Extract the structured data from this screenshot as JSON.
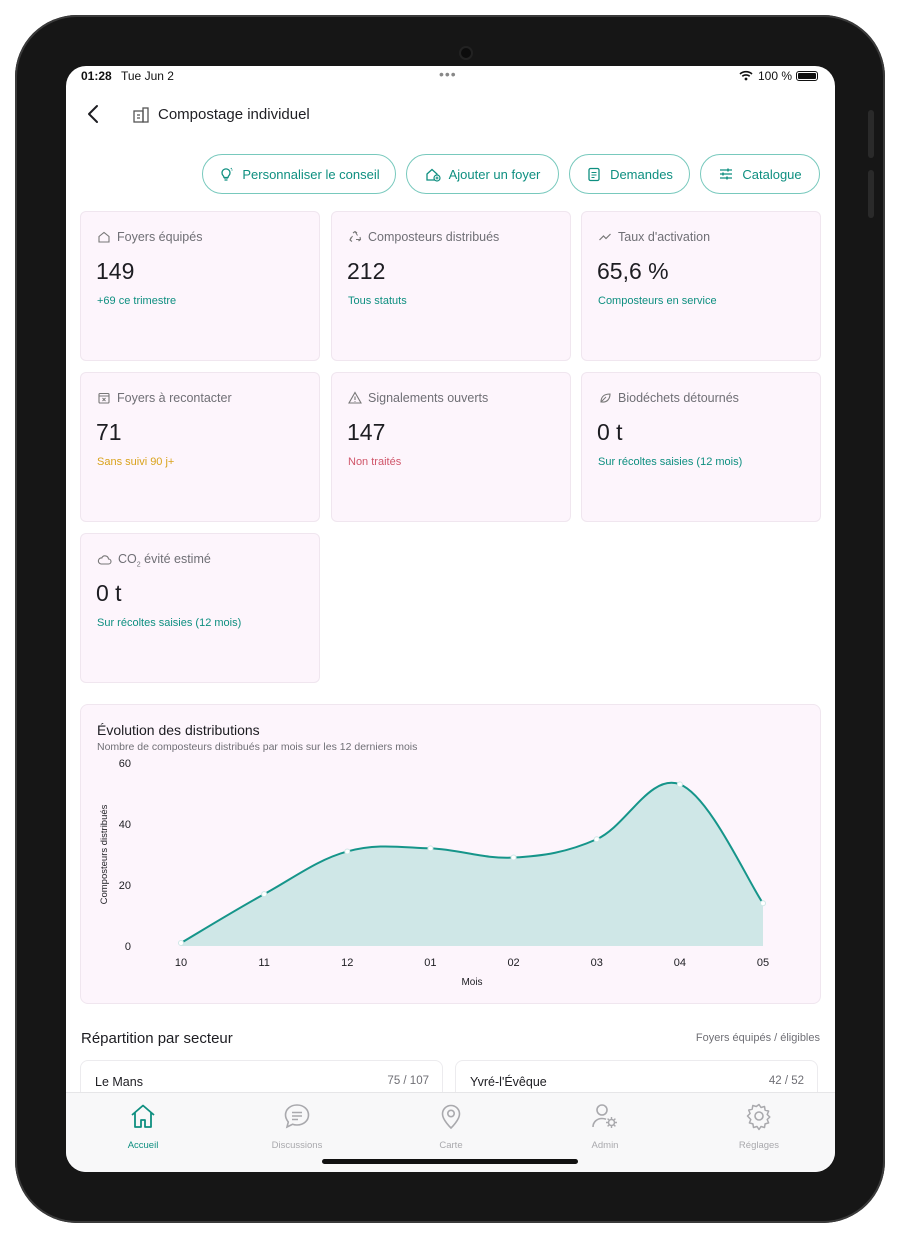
{
  "status_bar": {
    "time": "01:28",
    "date": "Tue Jun 2",
    "battery": "100 %"
  },
  "header": {
    "title": "Compostage individuel"
  },
  "actions": [
    {
      "label": "Personnaliser le conseil",
      "icon": "lightbulb-icon"
    },
    {
      "label": "Ajouter un foyer",
      "icon": "house-add-icon"
    },
    {
      "label": "Demandes",
      "icon": "clipboard-icon"
    },
    {
      "label": "Catalogue",
      "icon": "sliders-icon"
    }
  ],
  "colors": {
    "accent": "#0e8f80",
    "warning": "#d9a31c",
    "danger": "#d0566a",
    "card_bg": "#fdf5fc"
  },
  "stats": [
    {
      "label": "Foyers équipés",
      "value": "149",
      "sub": "+69 ce trimestre",
      "sub_color": "#0e8f80",
      "icon": "home-icon"
    },
    {
      "label": "Composteurs distribués",
      "value": "212",
      "sub": "Tous statuts",
      "sub_color": "#0e8f80",
      "icon": "recycle-icon"
    },
    {
      "label": "Taux d'activation",
      "value": "65,6 %",
      "sub": "Composteurs en service",
      "sub_color": "#0e8f80",
      "icon": "trend-icon"
    },
    {
      "label": "Foyers à recontacter",
      "value": "71",
      "sub": "Sans suivi 90 j+",
      "sub_color": "#d9a31c",
      "icon": "calendar-x-icon"
    },
    {
      "label": "Signalements ouverts",
      "value": "147",
      "sub": "Non traités",
      "sub_color": "#d0566a",
      "icon": "warning-icon"
    },
    {
      "label": "Biodéchets détournés",
      "value": "0 t",
      "sub": "Sur récoltes saisies (12 mois)",
      "sub_color": "#0e8f80",
      "icon": "leaf-icon"
    }
  ],
  "co2_card": {
    "label_prefix": "CO",
    "label_sub": "2",
    "label_suffix": " évité estimé",
    "value": "0 t",
    "sub": "Sur récoltes saisies (12 mois)",
    "icon": "cloud-icon"
  },
  "chart_data": {
    "type": "area",
    "title": "Évolution des distributions",
    "subtitle": "Nombre de composteurs distribués par mois sur les 12 derniers mois",
    "xlabel": "Mois",
    "ylabel": "Composteurs distribués",
    "categories": [
      "10",
      "11",
      "12",
      "01",
      "02",
      "03",
      "04",
      "05"
    ],
    "series": [
      {
        "values": [
          1,
          17,
          31,
          32,
          29,
          35,
          53,
          14
        ]
      }
    ],
    "ylim": [
      0,
      60
    ],
    "yticks": [
      "0",
      "20",
      "40",
      "60"
    ],
    "grid": false
  },
  "sectors_section": {
    "title": "Répartition par secteur",
    "hint": "Foyers équipés / éligibles"
  },
  "sectors": [
    {
      "name": "Le Mans",
      "ratio": "75 / 107"
    },
    {
      "name": "Yvré-l'Évêque",
      "ratio": "42 / 52"
    }
  ],
  "tabs": [
    {
      "label": "Accueil",
      "icon": "home-icon",
      "active": true
    },
    {
      "label": "Discussions",
      "icon": "chat-icon",
      "active": false
    },
    {
      "label": "Carte",
      "icon": "map-pin-icon",
      "active": false
    },
    {
      "label": "Admin",
      "icon": "user-gear-icon",
      "active": false
    },
    {
      "label": "Réglages",
      "icon": "gear-icon",
      "active": false
    }
  ]
}
